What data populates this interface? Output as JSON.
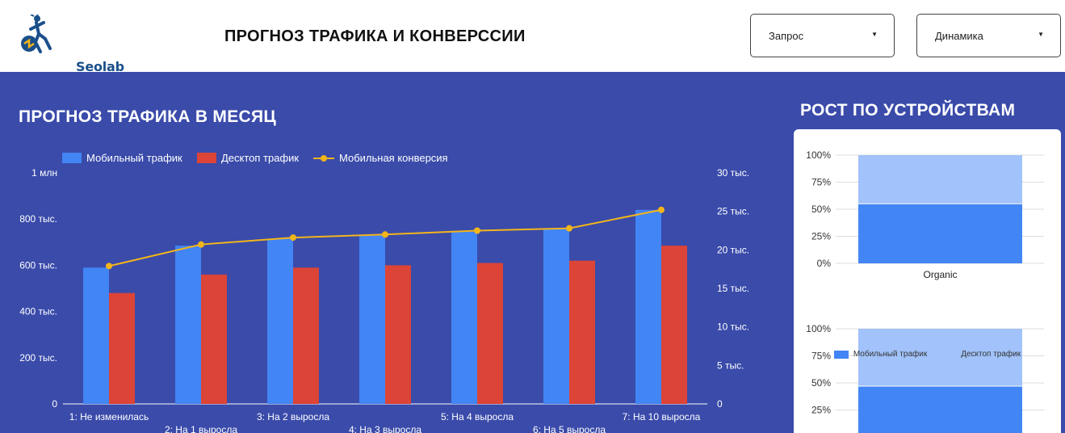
{
  "header": {
    "logo_text": "Seolab",
    "title": "ПРОГНОЗ ТРАФИКА И КОНВЕРССИИ",
    "dropdowns": [
      {
        "label": "Запрос"
      },
      {
        "label": "Динамика"
      }
    ]
  },
  "colors": {
    "background": "#3a4baa",
    "mobile": "#4285f4",
    "desktop": "#db4437",
    "conversion": "#f3b51a",
    "stack_mobile": "#4285f4",
    "stack_desktop": "#a1c2fa"
  },
  "main_section": {
    "title": "ПРОГНОЗ ТРАФИКА В МЕСЯЦ"
  },
  "side_section": {
    "title": "РОСТ ПО УСТРОЙСТВАМ"
  },
  "chart_data": [
    {
      "type": "bar",
      "title": "ПРОГНОЗ ТРАФИКА В МЕСЯЦ",
      "categories": [
        "1: Не изменилась",
        "2: На 1 выросла",
        "3: На 2 выросла",
        "4: На 3 выросла",
        "5: На 4 выросла",
        "6: На 5 выросла",
        "7: На 10 выросла"
      ],
      "series": [
        {
          "name": "Мобильный трафик",
          "kind": "bar",
          "axis": "left",
          "values": [
            590000,
            685000,
            715000,
            730000,
            745000,
            760000,
            840000
          ]
        },
        {
          "name": "Десктоп трафик",
          "kind": "bar",
          "axis": "left",
          "values": [
            480000,
            560000,
            590000,
            600000,
            610000,
            620000,
            685000
          ]
        },
        {
          "name": "Мобильная конверсия",
          "kind": "line",
          "axis": "right",
          "values": [
            17900,
            20700,
            21600,
            22000,
            22500,
            22800,
            25200
          ]
        }
      ],
      "y_left": {
        "ylim": [
          0,
          1000000
        ],
        "ticks": [
          "0",
          "200 тыс.",
          "400 тыс.",
          "600 тыс.",
          "800 тыс.",
          "1 млн"
        ]
      },
      "y_right": {
        "ylim": [
          0,
          30000
        ],
        "ticks": [
          "0",
          "5 тыс.",
          "10 тыс.",
          "15 тыс.",
          "20 тыс.",
          "25 тыс.",
          "30 тыс."
        ]
      },
      "legend": "top-left",
      "grid": false
    },
    {
      "type": "bar",
      "stacked": "percent",
      "categories": [
        "Organic"
      ],
      "series": [
        {
          "name": "Мобильный трафик",
          "values": [
            55
          ]
        },
        {
          "name": "Десктоп трафик",
          "values": [
            45
          ]
        }
      ],
      "yticks": [
        "0%",
        "25%",
        "50%",
        "75%",
        "100%"
      ],
      "ylim": [
        0,
        100
      ],
      "grid": true,
      "legend": "bottom"
    },
    {
      "type": "bar",
      "stacked": "percent",
      "categories": [
        ""
      ],
      "series": [
        {
          "name": "Мобильный трафик",
          "values": [
            47
          ]
        },
        {
          "name": "Десктоп трафик",
          "values": [
            53
          ]
        }
      ],
      "yticks": [
        "25%",
        "50%",
        "75%",
        "100%"
      ],
      "ylim": [
        0,
        100
      ],
      "grid": true
    }
  ]
}
